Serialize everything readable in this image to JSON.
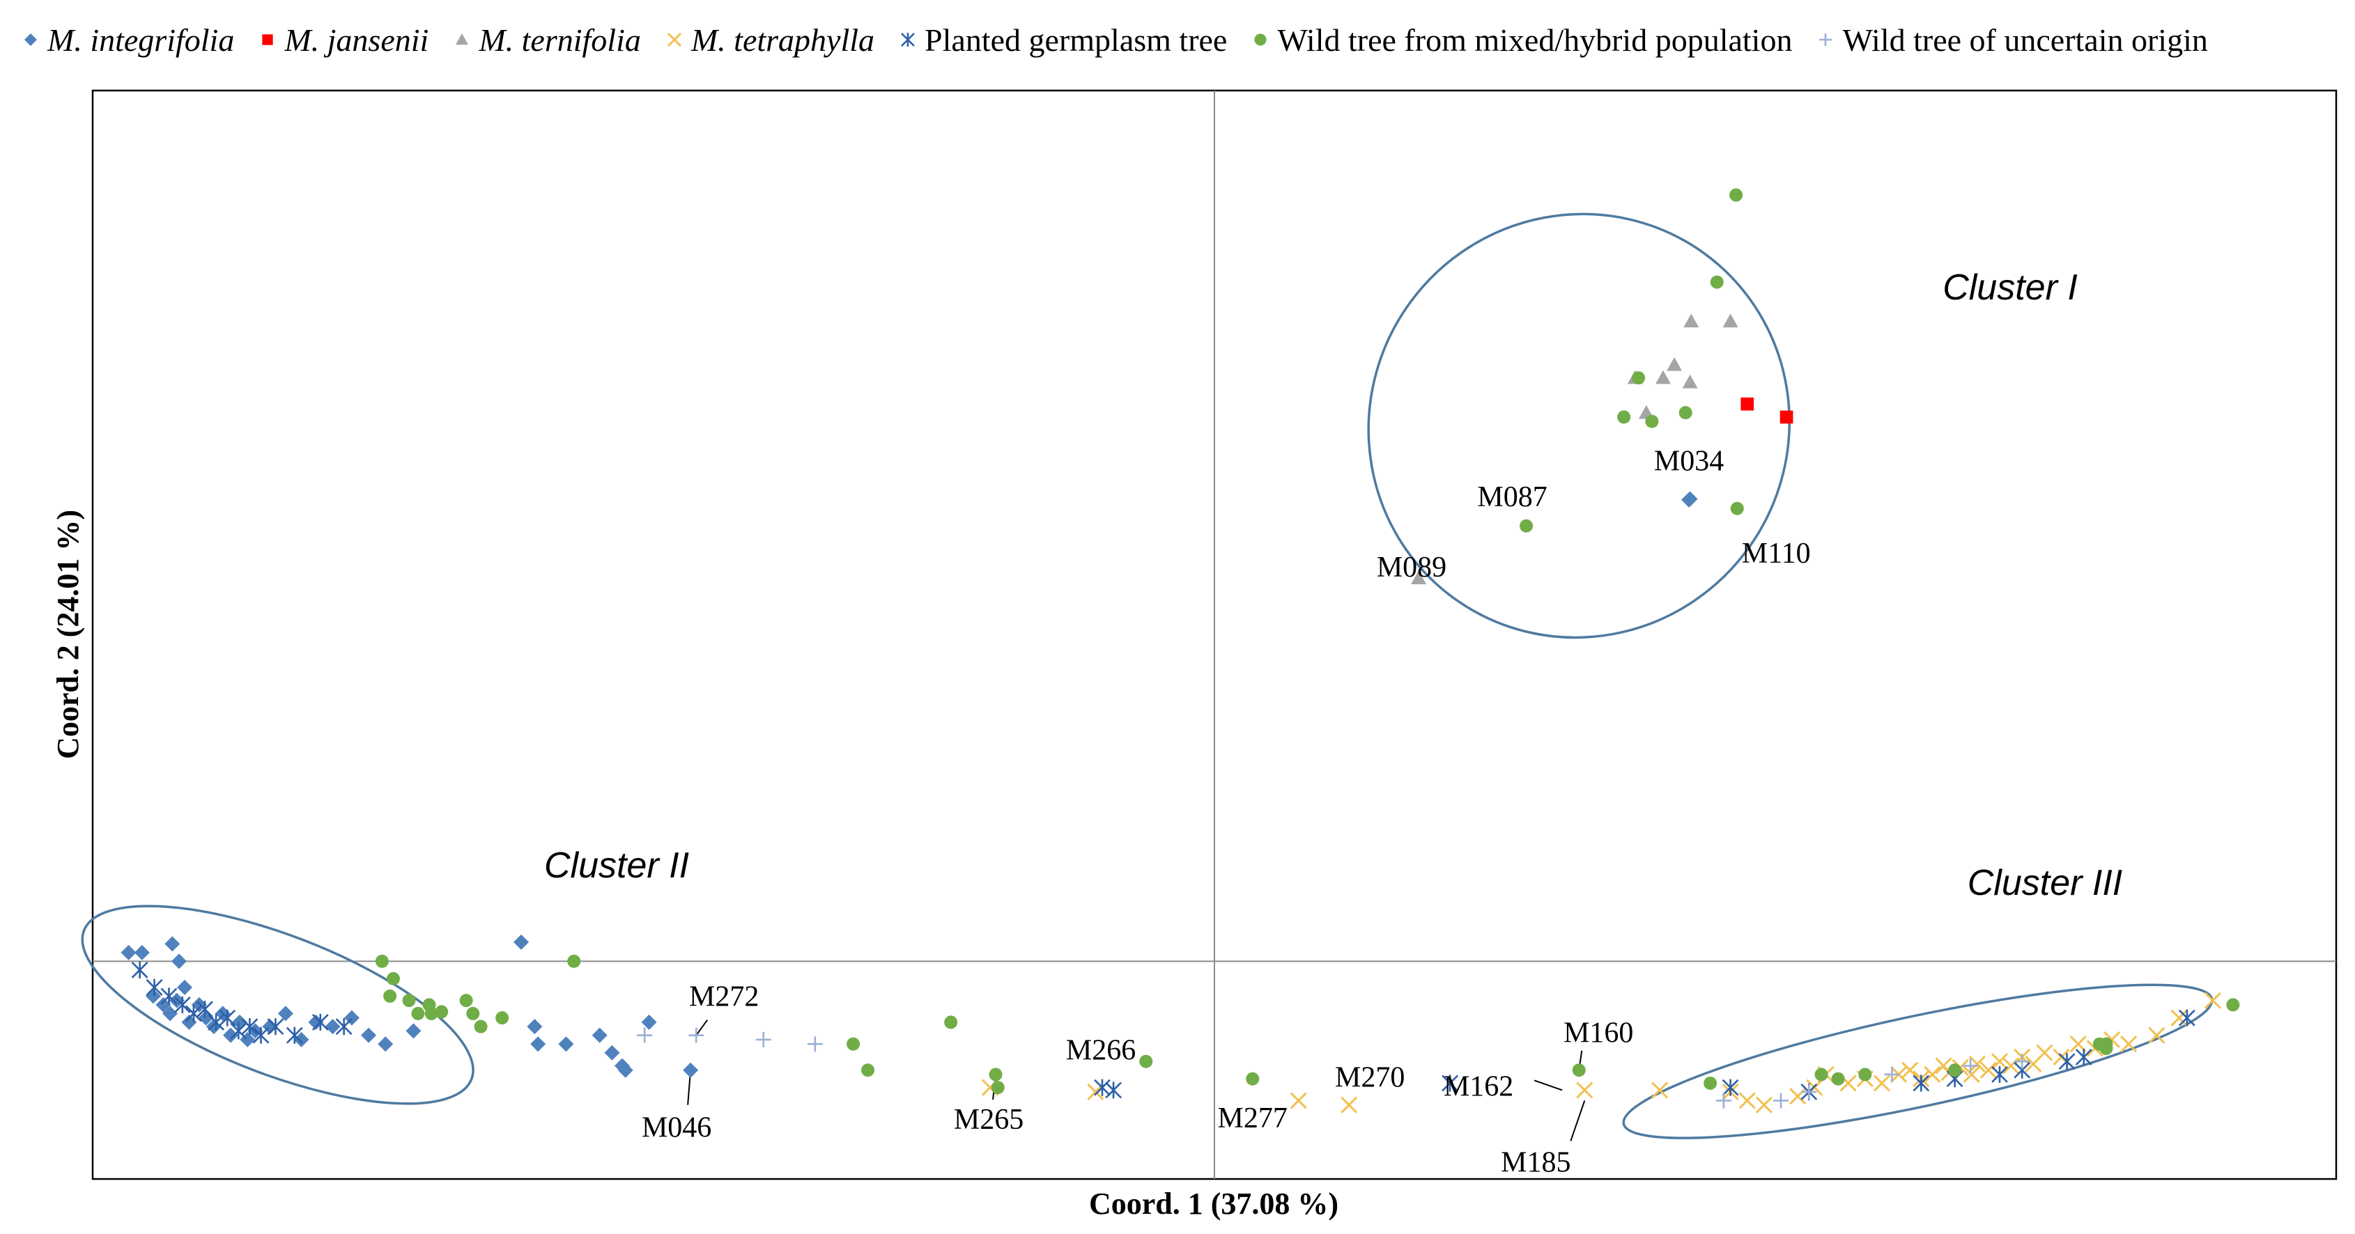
{
  "colors": {
    "integrifolia": "#4f81bd",
    "jansenii": "#ff0000",
    "ternifolia": "#a5a5a5",
    "tetraphylla": "#f2c050",
    "planted": "#2e5fa8",
    "wild_mixed": "#70ad47",
    "uncertain": "#9bb0d6",
    "ellipse": "#4f7aa0",
    "axis": "#8c8c8c"
  },
  "legend": [
    {
      "key": "integrifolia",
      "genus": "M.",
      "epithet": "integrifolia",
      "italic": true,
      "marker": "diamond"
    },
    {
      "key": "jansenii",
      "genus": "M.",
      "epithet": "jansenii",
      "italic": true,
      "marker": "square"
    },
    {
      "key": "ternifolia",
      "genus": "M.",
      "epithet": "ternifolia",
      "italic": true,
      "marker": "triangle"
    },
    {
      "key": "tetraphylla",
      "genus": "M.",
      "epithet": "tetraphylla",
      "italic": true,
      "marker": "x"
    },
    {
      "key": "planted",
      "label": "Planted germplasm tree",
      "italic": false,
      "marker": "star"
    },
    {
      "key": "wild_mixed",
      "label": "Wild tree from mixed/hybrid population",
      "italic": false,
      "marker": "circle"
    },
    {
      "key": "uncertain",
      "label": "Wild tree of uncertain origin",
      "italic": false,
      "marker": "plus"
    }
  ],
  "chart_data": {
    "type": "scatter",
    "xlabel": "Coord. 1 (37.08 %)",
    "ylabel": "Coord. 2 (24.01 %)",
    "xlim": [
      -1.0,
      1.0
    ],
    "ylim": [
      -0.25,
      1.0
    ],
    "grid": false,
    "series": [
      {
        "name": "M. integrifolia",
        "key": "integrifolia",
        "marker": "diamond",
        "points": [
          [
            -0.968,
            0.01
          ],
          [
            -0.956,
            0.01
          ],
          [
            -0.929,
            0.02
          ],
          [
            -0.923,
            0.0
          ],
          [
            -0.918,
            -0.03
          ],
          [
            -0.946,
            -0.04
          ],
          [
            -0.937,
            -0.05
          ],
          [
            -0.931,
            -0.06
          ],
          [
            -0.925,
            -0.045
          ],
          [
            -0.914,
            -0.07
          ],
          [
            -0.905,
            -0.05
          ],
          [
            -0.899,
            -0.065
          ],
          [
            -0.892,
            -0.075
          ],
          [
            -0.884,
            -0.06
          ],
          [
            -0.877,
            -0.085
          ],
          [
            -0.869,
            -0.07
          ],
          [
            -0.862,
            -0.09
          ],
          [
            -0.855,
            -0.08
          ],
          [
            -0.842,
            -0.075
          ],
          [
            -0.828,
            -0.06
          ],
          [
            -0.814,
            -0.09
          ],
          [
            -0.801,
            -0.07
          ],
          [
            -0.786,
            -0.075
          ],
          [
            -0.769,
            -0.065
          ],
          [
            -0.754,
            -0.085
          ],
          [
            -0.739,
            -0.095
          ],
          [
            -0.714,
            -0.08
          ],
          [
            -0.618,
            0.022
          ],
          [
            -0.606,
            -0.075
          ],
          [
            -0.603,
            -0.095
          ],
          [
            -0.578,
            -0.095
          ],
          [
            -0.548,
            -0.085
          ],
          [
            -0.537,
            -0.105
          ],
          [
            -0.528,
            -0.12
          ],
          [
            -0.525,
            -0.125
          ],
          [
            -0.467,
            -0.125
          ],
          [
            -0.504,
            -0.07
          ],
          [
            0.423,
            0.53
          ],
          [
            0.424,
            0.531
          ]
        ]
      },
      {
        "name": "M. jansenii",
        "key": "jansenii",
        "marker": "square",
        "points": [
          [
            0.475,
            0.64
          ],
          [
            0.51,
            0.625
          ]
        ]
      },
      {
        "name": "M. ternifolia",
        "key": "ternifolia",
        "marker": "triangle",
        "points": [
          [
            0.425,
            0.735
          ],
          [
            0.46,
            0.735
          ],
          [
            0.41,
            0.685
          ],
          [
            0.375,
            0.67
          ],
          [
            0.4,
            0.67
          ],
          [
            0.424,
            0.665
          ],
          [
            0.385,
            0.63
          ],
          [
            0.182,
            0.44
          ]
        ]
      },
      {
        "name": "M. tetraphylla",
        "key": "tetraphylla",
        "marker": "x",
        "points": [
          [
            -0.2,
            -0.145
          ],
          [
            -0.106,
            -0.15
          ],
          [
            0.075,
            -0.16
          ],
          [
            0.12,
            -0.165
          ],
          [
            0.33,
            -0.148
          ],
          [
            0.397,
            -0.148
          ],
          [
            0.46,
            -0.15
          ],
          [
            0.475,
            -0.16
          ],
          [
            0.49,
            -0.165
          ],
          [
            0.52,
            -0.155
          ],
          [
            0.535,
            -0.145
          ],
          [
            0.545,
            -0.13
          ],
          [
            0.565,
            -0.14
          ],
          [
            0.58,
            -0.135
          ],
          [
            0.595,
            -0.14
          ],
          [
            0.61,
            -0.13
          ],
          [
            0.62,
            -0.125
          ],
          [
            0.63,
            -0.135
          ],
          [
            0.64,
            -0.13
          ],
          [
            0.65,
            -0.12
          ],
          [
            0.655,
            -0.128
          ],
          [
            0.665,
            -0.122
          ],
          [
            0.675,
            -0.13
          ],
          [
            0.68,
            -0.118
          ],
          [
            0.69,
            -0.125
          ],
          [
            0.7,
            -0.115
          ],
          [
            0.71,
            -0.12
          ],
          [
            0.72,
            -0.11
          ],
          [
            0.73,
            -0.118
          ],
          [
            0.74,
            -0.105
          ],
          [
            0.755,
            -0.11
          ],
          [
            0.77,
            -0.095
          ],
          [
            0.785,
            -0.1
          ],
          [
            0.8,
            -0.09
          ],
          [
            0.815,
            -0.095
          ],
          [
            0.84,
            -0.085
          ],
          [
            0.89,
            -0.045
          ],
          [
            0.86,
            -0.065
          ]
        ]
      },
      {
        "name": "Planted germplasm tree",
        "key": "planted",
        "marker": "star",
        "points": [
          [
            -0.958,
            -0.01
          ],
          [
            -0.945,
            -0.03
          ],
          [
            -0.932,
            -0.04
          ],
          [
            -0.92,
            -0.05
          ],
          [
            -0.91,
            -0.06
          ],
          [
            -0.9,
            -0.055
          ],
          [
            -0.89,
            -0.07
          ],
          [
            -0.88,
            -0.065
          ],
          [
            -0.87,
            -0.08
          ],
          [
            -0.86,
            -0.075
          ],
          [
            -0.85,
            -0.085
          ],
          [
            -0.837,
            -0.075
          ],
          [
            -0.82,
            -0.085
          ],
          [
            -0.797,
            -0.07
          ],
          [
            -0.776,
            -0.075
          ],
          [
            -0.1,
            -0.145
          ],
          [
            -0.09,
            -0.148
          ],
          [
            0.21,
            -0.14
          ],
          [
            0.46,
            -0.145
          ],
          [
            0.53,
            -0.15
          ],
          [
            0.63,
            -0.14
          ],
          [
            0.66,
            -0.135
          ],
          [
            0.7,
            -0.13
          ],
          [
            0.72,
            -0.125
          ],
          [
            0.76,
            -0.115
          ],
          [
            0.775,
            -0.11
          ],
          [
            0.867,
            -0.065
          ]
        ]
      },
      {
        "name": "Wild tree from mixed/hybrid population",
        "key": "wild_mixed",
        "marker": "circle",
        "points": [
          [
            0.465,
            0.88
          ],
          [
            0.448,
            0.78
          ],
          [
            0.378,
            0.67
          ],
          [
            0.365,
            0.625
          ],
          [
            0.39,
            0.62
          ],
          [
            0.42,
            0.63
          ],
          [
            0.466,
            0.52
          ],
          [
            0.278,
            0.5
          ],
          [
            -0.742,
            0.0
          ],
          [
            -0.732,
            -0.02
          ],
          [
            -0.735,
            -0.04
          ],
          [
            -0.718,
            -0.045
          ],
          [
            -0.71,
            -0.06
          ],
          [
            -0.7,
            -0.05
          ],
          [
            -0.698,
            -0.06
          ],
          [
            -0.689,
            -0.058
          ],
          [
            -0.667,
            -0.045
          ],
          [
            -0.661,
            -0.06
          ],
          [
            -0.654,
            -0.075
          ],
          [
            -0.635,
            -0.065
          ],
          [
            -0.571,
            0.0
          ],
          [
            -0.322,
            -0.095
          ],
          [
            -0.309,
            -0.125
          ],
          [
            -0.235,
            -0.07
          ],
          [
            -0.195,
            -0.13
          ],
          [
            -0.193,
            -0.145
          ],
          [
            -0.061,
            -0.115
          ],
          [
            0.034,
            -0.135
          ],
          [
            0.325,
            -0.125
          ],
          [
            0.442,
            -0.14
          ],
          [
            0.541,
            -0.13
          ],
          [
            0.556,
            -0.135
          ],
          [
            0.58,
            -0.13
          ],
          [
            0.66,
            -0.125
          ],
          [
            0.795,
            -0.1
          ],
          [
            0.795,
            -0.095
          ],
          [
            0.789,
            -0.095
          ],
          [
            0.908,
            -0.05
          ]
        ]
      },
      {
        "name": "Wild tree of uncertain origin",
        "key": "uncertain",
        "marker": "plus",
        "points": [
          [
            -0.508,
            -0.085
          ],
          [
            -0.462,
            -0.085
          ],
          [
            -0.402,
            -0.09
          ],
          [
            -0.356,
            -0.095
          ],
          [
            0.454,
            -0.16
          ],
          [
            0.505,
            -0.16
          ],
          [
            0.53,
            -0.15
          ],
          [
            0.604,
            -0.13
          ],
          [
            0.674,
            -0.12
          ],
          [
            0.72,
            -0.115
          ]
        ]
      }
    ],
    "point_labels": [
      {
        "text": "M034",
        "x": 0.423,
        "y": 0.53
      },
      {
        "text": "M087",
        "x": 0.278,
        "y": 0.5
      },
      {
        "text": "M089",
        "x": 0.182,
        "y": 0.44
      },
      {
        "text": "M110",
        "x": 0.466,
        "y": 0.52
      },
      {
        "text": "M272",
        "x": -0.462,
        "y": -0.085
      },
      {
        "text": "M046",
        "x": -0.467,
        "y": -0.125
      },
      {
        "text": "M265",
        "x": -0.195,
        "y": -0.13
      },
      {
        "text": "M266",
        "x": -0.09,
        "y": -0.148
      },
      {
        "text": "M270",
        "x": 0.12,
        "y": -0.165
      },
      {
        "text": "M277",
        "x": 0.034,
        "y": -0.135
      },
      {
        "text": "M160",
        "x": 0.325,
        "y": -0.125
      },
      {
        "text": "M162",
        "x": 0.31,
        "y": -0.148
      },
      {
        "text": "M185",
        "x": 0.33,
        "y": -0.16
      }
    ],
    "clusters": [
      {
        "name": "Cluster I",
        "center": [
          0.325,
          0.615
        ],
        "rx": 0.19,
        "ry": 0.24,
        "rotation_deg": -55
      },
      {
        "name": "Cluster II",
        "center": [
          -0.835,
          -0.05
        ],
        "rx": 0.185,
        "ry": 0.08,
        "rotation_deg": 21
      },
      {
        "name": "Cluster III",
        "center": [
          0.627,
          -0.115
        ],
        "rx": 0.268,
        "ry": 0.052,
        "rotation_deg": -12
      }
    ]
  }
}
